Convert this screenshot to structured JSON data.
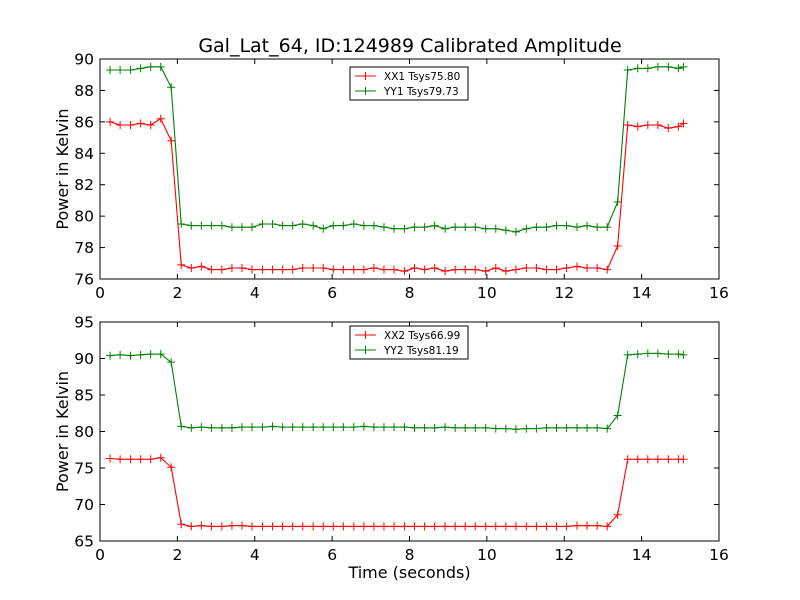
{
  "chart_data": [
    {
      "type": "line",
      "title": "Gal_Lat_64, ID:124989 Calibrated Amplitude",
      "xlabel": "",
      "ylabel": "Power in Kelvin",
      "xlim": [
        0,
        16
      ],
      "ylim": [
        76,
        90
      ],
      "xticks": [
        0,
        2,
        4,
        6,
        8,
        10,
        12,
        14,
        16
      ],
      "yticks": [
        76,
        78,
        80,
        82,
        84,
        86,
        88,
        90
      ],
      "grid": false,
      "legend_position": "top-center",
      "x": [
        0.26,
        0.52,
        0.79,
        1.05,
        1.31,
        1.57,
        1.84,
        2.1,
        2.36,
        2.62,
        2.88,
        3.15,
        3.41,
        3.67,
        3.93,
        4.2,
        4.46,
        4.72,
        4.98,
        5.24,
        5.51,
        5.77,
        6.03,
        6.29,
        6.56,
        6.82,
        7.08,
        7.34,
        7.6,
        7.87,
        8.13,
        8.39,
        8.65,
        8.92,
        9.18,
        9.44,
        9.7,
        9.97,
        10.23,
        10.49,
        10.75,
        11.02,
        11.28,
        11.54,
        11.8,
        12.06,
        12.33,
        12.59,
        12.85,
        13.11,
        13.38,
        13.64,
        13.9,
        14.16,
        14.42,
        14.69,
        14.95,
        15.08
      ],
      "series": [
        {
          "name": "XX1 Tsys75.80",
          "color": "#ff0000",
          "values": [
            86.0,
            85.8,
            85.8,
            85.9,
            85.8,
            86.2,
            84.8,
            76.9,
            76.7,
            76.8,
            76.6,
            76.6,
            76.7,
            76.7,
            76.6,
            76.6,
            76.6,
            76.6,
            76.6,
            76.7,
            76.7,
            76.7,
            76.6,
            76.6,
            76.6,
            76.6,
            76.7,
            76.6,
            76.6,
            76.5,
            76.7,
            76.6,
            76.7,
            76.5,
            76.6,
            76.6,
            76.6,
            76.5,
            76.7,
            76.5,
            76.6,
            76.7,
            76.7,
            76.6,
            76.6,
            76.7,
            76.8,
            76.7,
            76.7,
            76.6,
            78.1,
            85.8,
            85.7,
            85.8,
            85.8,
            85.6,
            85.7,
            85.9
          ]
        },
        {
          "name": "YY1 Tsys79.73",
          "color": "#008000",
          "values": [
            89.3,
            89.3,
            89.3,
            89.4,
            89.5,
            89.5,
            88.2,
            79.5,
            79.4,
            79.4,
            79.4,
            79.4,
            79.3,
            79.3,
            79.3,
            79.5,
            79.5,
            79.4,
            79.4,
            79.5,
            79.4,
            79.2,
            79.4,
            79.4,
            79.5,
            79.4,
            79.4,
            79.3,
            79.2,
            79.2,
            79.3,
            79.3,
            79.4,
            79.2,
            79.3,
            79.3,
            79.3,
            79.2,
            79.2,
            79.1,
            79.0,
            79.2,
            79.3,
            79.3,
            79.4,
            79.4,
            79.3,
            79.4,
            79.3,
            79.3,
            80.9,
            89.3,
            89.4,
            89.4,
            89.5,
            89.5,
            89.4,
            89.5
          ]
        }
      ]
    },
    {
      "type": "line",
      "title": "",
      "xlabel": "Time (seconds)",
      "ylabel": "Power in Kelvin",
      "xlim": [
        0,
        16
      ],
      "ylim": [
        65,
        95
      ],
      "xticks": [
        0,
        2,
        4,
        6,
        8,
        10,
        12,
        14,
        16
      ],
      "yticks": [
        65,
        70,
        75,
        80,
        85,
        90,
        95
      ],
      "grid": false,
      "legend_position": "top-center",
      "x": [
        0.26,
        0.52,
        0.79,
        1.05,
        1.31,
        1.57,
        1.84,
        2.1,
        2.36,
        2.62,
        2.88,
        3.15,
        3.41,
        3.67,
        3.93,
        4.2,
        4.46,
        4.72,
        4.98,
        5.24,
        5.51,
        5.77,
        6.03,
        6.29,
        6.56,
        6.82,
        7.08,
        7.34,
        7.6,
        7.87,
        8.13,
        8.39,
        8.65,
        8.92,
        9.18,
        9.44,
        9.7,
        9.97,
        10.23,
        10.49,
        10.75,
        11.02,
        11.28,
        11.54,
        11.8,
        12.06,
        12.33,
        12.59,
        12.85,
        13.11,
        13.38,
        13.64,
        13.9,
        14.16,
        14.42,
        14.69,
        14.95,
        15.08
      ],
      "series": [
        {
          "name": "XX2 Tsys66.99",
          "color": "#ff0000",
          "values": [
            76.3,
            76.2,
            76.2,
            76.2,
            76.2,
            76.4,
            75.1,
            67.3,
            67.0,
            67.1,
            67.0,
            67.0,
            67.1,
            67.1,
            67.0,
            67.0,
            67.0,
            67.0,
            67.0,
            67.0,
            67.0,
            67.0,
            67.0,
            67.0,
            67.0,
            67.0,
            67.0,
            67.0,
            67.0,
            67.0,
            67.0,
            67.0,
            67.0,
            67.0,
            67.0,
            67.0,
            67.0,
            67.0,
            67.0,
            67.0,
            67.0,
            67.0,
            67.0,
            67.0,
            67.0,
            67.0,
            67.1,
            67.1,
            67.1,
            67.0,
            68.6,
            76.2,
            76.2,
            76.2,
            76.2,
            76.2,
            76.2,
            76.2
          ]
        },
        {
          "name": "YY2 Tsys81.19",
          "color": "#008000",
          "values": [
            90.4,
            90.5,
            90.4,
            90.5,
            90.6,
            90.6,
            89.5,
            80.7,
            80.5,
            80.6,
            80.5,
            80.5,
            80.5,
            80.6,
            80.6,
            80.6,
            80.7,
            80.6,
            80.6,
            80.6,
            80.6,
            80.6,
            80.6,
            80.6,
            80.6,
            80.7,
            80.6,
            80.6,
            80.6,
            80.6,
            80.5,
            80.5,
            80.5,
            80.6,
            80.5,
            80.5,
            80.5,
            80.5,
            80.4,
            80.4,
            80.3,
            80.4,
            80.4,
            80.5,
            80.5,
            80.5,
            80.5,
            80.5,
            80.5,
            80.4,
            82.2,
            90.5,
            90.6,
            90.7,
            90.7,
            90.6,
            90.6,
            90.5
          ]
        }
      ]
    }
  ]
}
